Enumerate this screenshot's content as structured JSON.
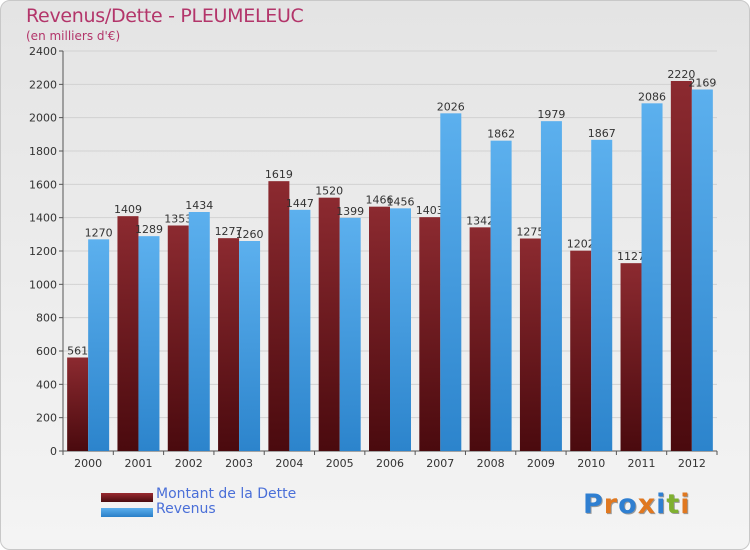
{
  "title": "Revenus/Dette - PLEUMELEUC",
  "subtitle": "(en milliers d'€)",
  "logo": {
    "text": "Proxiti",
    "letter_colors": [
      "#2f7fd1",
      "#e07820",
      "#2f7fd1",
      "#e07820",
      "#2f7fd1",
      "#7fb030",
      "#e07820"
    ]
  },
  "chart_data": {
    "type": "bar",
    "categories": [
      "2000",
      "2001",
      "2002",
      "2003",
      "2004",
      "2005",
      "2006",
      "2007",
      "2008",
      "2009",
      "2010",
      "2011",
      "2012"
    ],
    "series": [
      {
        "name": "Montant de la Dette",
        "color": "#7a1c22",
        "values": [
          561,
          1409,
          1353,
          1277,
          1619,
          1520,
          1466,
          1403,
          1342,
          1275,
          1202,
          1127,
          2220
        ]
      },
      {
        "name": "Revenus",
        "color": "#3d9be0",
        "values": [
          1270,
          1289,
          1434,
          1260,
          1447,
          1399,
          1456,
          2026,
          1862,
          1979,
          1867,
          2086,
          2169
        ]
      }
    ],
    "yticks": [
      0,
      200,
      400,
      600,
      800,
      1000,
      1200,
      1400,
      1600,
      1800,
      2000,
      2200,
      2400
    ],
    "ylim": [
      0,
      2400
    ],
    "grid": true,
    "legend_position": "bottom-left"
  }
}
